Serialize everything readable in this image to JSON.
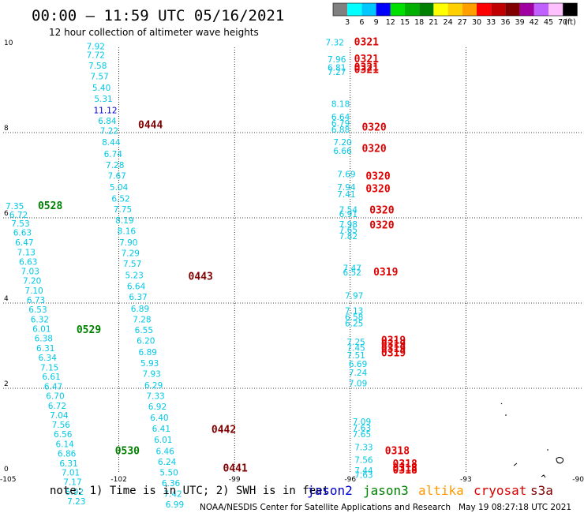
{
  "header": {
    "title": "00:00 – 11:59 UTC 05/16/2021",
    "subtitle": "12 hour collection of altimeter wave heights"
  },
  "colorbar": {
    "labels": [
      "3",
      "6",
      "9",
      "12",
      "15",
      "18",
      "21",
      "24",
      "27",
      "30",
      "33",
      "36",
      "39",
      "42",
      "45",
      "70"
    ],
    "unit": "(ft)",
    "colors": [
      "#808080",
      "#00ffff",
      "#00c8ff",
      "#0000ff",
      "#00e000",
      "#00b000",
      "#008000",
      "#ffff00",
      "#ffd000",
      "#ffa000",
      "#ff0000",
      "#c00000",
      "#800000",
      "#a000a0",
      "#c060ff",
      "#ffc0ff",
      "#000000"
    ]
  },
  "footer": {
    "note": "note: 1) Time is in UTC; 2) SWH is in feet",
    "legend": [
      {
        "name": "jason2",
        "color": "#0000cc"
      },
      {
        "name": "jason3",
        "color": "#008000"
      },
      {
        "name": "altika",
        "color": "#ff9900"
      },
      {
        "name": "cryosat",
        "color": "#dd0000"
      },
      {
        "name": "s3a",
        "color": "#800000"
      }
    ],
    "credit": "NOAA/NESDIS Center for Satellite Applications and Research",
    "timestamp": "May 19 08:27:18 UTC 2021"
  },
  "chart_data": {
    "type": "scatter",
    "title": "12 hour collection of altimeter wave heights",
    "xlabel": "",
    "ylabel": "",
    "xlim": [
      -105,
      -90
    ],
    "ylim": [
      0,
      10
    ],
    "x_ticks": [
      "-105",
      "-102",
      "-99",
      "-96",
      "-93",
      "-90"
    ],
    "y_ticks": [
      "0",
      "2",
      "4",
      "6",
      "8",
      "10"
    ],
    "grid": true,
    "palette": {
      "cyan": "#00c8e6",
      "blue": "#0000cc",
      "green": "#008000",
      "darkred": "#800000",
      "red": "#dd0000"
    },
    "track_labels": [
      {
        "text": "0444",
        "lon": -101.5,
        "lat": 8.1,
        "color": "darkred"
      },
      {
        "text": "0443",
        "lon": -100.2,
        "lat": 4.55,
        "color": "darkred"
      },
      {
        "text": "0442",
        "lon": -99.6,
        "lat": 0.95,
        "color": "darkred"
      },
      {
        "text": "0441",
        "lon": -99.3,
        "lat": 0.05,
        "color": "darkred"
      },
      {
        "text": "0528",
        "lon": -104.1,
        "lat": 6.2,
        "color": "green"
      },
      {
        "text": "0529",
        "lon": -103.1,
        "lat": 3.3,
        "color": "green"
      },
      {
        "text": "0530",
        "lon": -102.1,
        "lat": 0.45,
        "color": "green"
      },
      {
        "text": "0321",
        "lon": -95.9,
        "lat": 10.05,
        "color": "red"
      },
      {
        "text": "0321",
        "lon": -95.9,
        "lat": 9.65,
        "color": "red"
      },
      {
        "text": "0321",
        "lon": -95.9,
        "lat": 9.45,
        "color": "red"
      },
      {
        "text": "0321",
        "lon": -95.9,
        "lat": 9.4,
        "color": "red"
      },
      {
        "text": "0320",
        "lon": -95.7,
        "lat": 8.05,
        "color": "red"
      },
      {
        "text": "0320",
        "lon": -95.7,
        "lat": 7.55,
        "color": "red"
      },
      {
        "text": "0320",
        "lon": -95.6,
        "lat": 6.9,
        "color": "red"
      },
      {
        "text": "0320",
        "lon": -95.6,
        "lat": 6.6,
        "color": "red"
      },
      {
        "text": "0320",
        "lon": -95.5,
        "lat": 6.1,
        "color": "red"
      },
      {
        "text": "0320",
        "lon": -95.5,
        "lat": 5.75,
        "color": "red"
      },
      {
        "text": "0319",
        "lon": -95.4,
        "lat": 4.65,
        "color": "red"
      },
      {
        "text": "0319",
        "lon": -95.2,
        "lat": 3.05,
        "color": "red"
      },
      {
        "text": "0319",
        "lon": -95.2,
        "lat": 2.95,
        "color": "red"
      },
      {
        "text": "0319",
        "lon": -95.2,
        "lat": 2.85,
        "color": "red"
      },
      {
        "text": "0319",
        "lon": -95.2,
        "lat": 2.75,
        "color": "red"
      },
      {
        "text": "0318",
        "lon": -95.1,
        "lat": 0.45,
        "color": "red"
      },
      {
        "text": "0318",
        "lon": -94.9,
        "lat": 0.15,
        "color": "red"
      },
      {
        "text": "0318",
        "lon": -94.9,
        "lat": 0.05,
        "color": "red"
      },
      {
        "text": "0318",
        "lon": -94.9,
        "lat": 0.0,
        "color": "red"
      }
    ],
    "points": [
      {
        "v": "7.92",
        "lon": -102.6,
        "lat": 9.95,
        "color": "cyan"
      },
      {
        "v": "7.72",
        "lon": -102.6,
        "lat": 9.75,
        "color": "cyan"
      },
      {
        "v": "7.58",
        "lon": -102.55,
        "lat": 9.5,
        "color": "cyan"
      },
      {
        "v": "7.57",
        "lon": -102.5,
        "lat": 9.25,
        "color": "cyan"
      },
      {
        "v": "5.40",
        "lon": -102.45,
        "lat": 8.98,
        "color": "cyan"
      },
      {
        "v": "5.31",
        "lon": -102.4,
        "lat": 8.72,
        "color": "cyan"
      },
      {
        "v": "11.12",
        "lon": -102.35,
        "lat": 8.45,
        "color": "blue"
      },
      {
        "v": "6.84",
        "lon": -102.3,
        "lat": 8.2,
        "color": "cyan"
      },
      {
        "v": "7.22",
        "lon": -102.25,
        "lat": 7.97,
        "color": "cyan"
      },
      {
        "v": "8.44",
        "lon": -102.2,
        "lat": 7.7,
        "color": "cyan"
      },
      {
        "v": "6.74",
        "lon": -102.15,
        "lat": 7.43,
        "color": "cyan"
      },
      {
        "v": "7.28",
        "lon": -102.1,
        "lat": 7.17,
        "color": "cyan"
      },
      {
        "v": "7.67",
        "lon": -102.05,
        "lat": 6.92,
        "color": "cyan"
      },
      {
        "v": "5.04",
        "lon": -102.0,
        "lat": 6.65,
        "color": "cyan"
      },
      {
        "v": "6.52",
        "lon": -101.95,
        "lat": 6.38,
        "color": "cyan"
      },
      {
        "v": "7.75",
        "lon": -101.9,
        "lat": 6.13,
        "color": "cyan"
      },
      {
        "v": "8.19",
        "lon": -101.85,
        "lat": 5.87,
        "color": "cyan"
      },
      {
        "v": "8.16",
        "lon": -101.8,
        "lat": 5.62,
        "color": "cyan"
      },
      {
        "v": "7.90",
        "lon": -101.75,
        "lat": 5.35,
        "color": "cyan"
      },
      {
        "v": "7.29",
        "lon": -101.7,
        "lat": 5.1,
        "color": "cyan"
      },
      {
        "v": "7.57",
        "lon": -101.65,
        "lat": 4.85,
        "color": "cyan"
      },
      {
        "v": "5.23",
        "lon": -101.6,
        "lat": 4.58,
        "color": "cyan"
      },
      {
        "v": "6.64",
        "lon": -101.55,
        "lat": 4.32,
        "color": "cyan"
      },
      {
        "v": "6.37",
        "lon": -101.5,
        "lat": 4.07,
        "color": "cyan"
      },
      {
        "v": "6.89",
        "lon": -101.45,
        "lat": 3.8,
        "color": "cyan"
      },
      {
        "v": "7.28",
        "lon": -101.4,
        "lat": 3.55,
        "color": "cyan"
      },
      {
        "v": "6.55",
        "lon": -101.35,
        "lat": 3.3,
        "color": "cyan"
      },
      {
        "v": "6.20",
        "lon": -101.3,
        "lat": 3.05,
        "color": "cyan"
      },
      {
        "v": "6.89",
        "lon": -101.25,
        "lat": 2.78,
        "color": "cyan"
      },
      {
        "v": "5.93",
        "lon": -101.2,
        "lat": 2.52,
        "color": "cyan"
      },
      {
        "v": "7.93",
        "lon": -101.15,
        "lat": 2.27,
        "color": "cyan"
      },
      {
        "v": "6.29",
        "lon": -101.1,
        "lat": 2.0,
        "color": "cyan"
      },
      {
        "v": "7.33",
        "lon": -101.05,
        "lat": 1.75,
        "color": "cyan"
      },
      {
        "v": "6.92",
        "lon": -101.0,
        "lat": 1.5,
        "color": "cyan"
      },
      {
        "v": "6.40",
        "lon": -100.95,
        "lat": 1.24,
        "color": "cyan"
      },
      {
        "v": "6.41",
        "lon": -100.9,
        "lat": 0.98,
        "color": "cyan"
      },
      {
        "v": "6.01",
        "lon": -100.85,
        "lat": 0.72,
        "color": "cyan"
      },
      {
        "v": "6.46",
        "lon": -100.8,
        "lat": 0.45,
        "color": "cyan"
      },
      {
        "v": "6.24",
        "lon": -100.75,
        "lat": 0.2,
        "color": "cyan"
      },
      {
        "v": "5.50",
        "lon": -100.7,
        "lat": -0.05,
        "color": "cyan"
      },
      {
        "v": "6.36",
        "lon": -100.65,
        "lat": -0.3,
        "color": "cyan"
      },
      {
        "v": "7.42",
        "lon": -100.6,
        "lat": -0.55,
        "color": "cyan"
      },
      {
        "v": "6.99",
        "lon": -100.55,
        "lat": -0.8,
        "color": "cyan"
      },
      {
        "v": "7.35",
        "lon": -104.7,
        "lat": 6.2,
        "color": "cyan"
      },
      {
        "v": "6.72",
        "lon": -104.6,
        "lat": 6.0,
        "color": "cyan"
      },
      {
        "v": "7.53",
        "lon": -104.55,
        "lat": 5.8,
        "color": "cyan"
      },
      {
        "v": "6.63",
        "lon": -104.5,
        "lat": 5.58,
        "color": "cyan"
      },
      {
        "v": "6.47",
        "lon": -104.45,
        "lat": 5.35,
        "color": "cyan"
      },
      {
        "v": "7.13",
        "lon": -104.4,
        "lat": 5.12,
        "color": "cyan"
      },
      {
        "v": "6.63",
        "lon": -104.35,
        "lat": 4.9,
        "color": "cyan"
      },
      {
        "v": "7.03",
        "lon": -104.3,
        "lat": 4.68,
        "color": "cyan"
      },
      {
        "v": "7.20",
        "lon": -104.25,
        "lat": 4.45,
        "color": "cyan"
      },
      {
        "v": "7.10",
        "lon": -104.2,
        "lat": 4.22,
        "color": "cyan"
      },
      {
        "v": "6.73",
        "lon": -104.15,
        "lat": 4.0,
        "color": "cyan"
      },
      {
        "v": "6.53",
        "lon": -104.1,
        "lat": 3.78,
        "color": "cyan"
      },
      {
        "v": "6.32",
        "lon": -104.05,
        "lat": 3.55,
        "color": "cyan"
      },
      {
        "v": "6.01",
        "lon": -104.0,
        "lat": 3.32,
        "color": "cyan"
      },
      {
        "v": "6.38",
        "lon": -103.95,
        "lat": 3.1,
        "color": "cyan"
      },
      {
        "v": "6.31",
        "lon": -103.9,
        "lat": 2.87,
        "color": "cyan"
      },
      {
        "v": "6.34",
        "lon": -103.85,
        "lat": 2.65,
        "color": "cyan"
      },
      {
        "v": "7.15",
        "lon": -103.8,
        "lat": 2.42,
        "color": "cyan"
      },
      {
        "v": "6.61",
        "lon": -103.75,
        "lat": 2.2,
        "color": "cyan"
      },
      {
        "v": "6.47",
        "lon": -103.7,
        "lat": 1.97,
        "color": "cyan"
      },
      {
        "v": "6.70",
        "lon": -103.65,
        "lat": 1.75,
        "color": "cyan"
      },
      {
        "v": "6.72",
        "lon": -103.6,
        "lat": 1.52,
        "color": "cyan"
      },
      {
        "v": "7.04",
        "lon": -103.55,
        "lat": 1.3,
        "color": "cyan"
      },
      {
        "v": "7.56",
        "lon": -103.5,
        "lat": 1.07,
        "color": "cyan"
      },
      {
        "v": "6.56",
        "lon": -103.45,
        "lat": 0.85,
        "color": "cyan"
      },
      {
        "v": "6.14",
        "lon": -103.4,
        "lat": 0.62,
        "color": "cyan"
      },
      {
        "v": "6.86",
        "lon": -103.35,
        "lat": 0.4,
        "color": "cyan"
      },
      {
        "v": "6.31",
        "lon": -103.3,
        "lat": 0.17,
        "color": "cyan"
      },
      {
        "v": "7.01",
        "lon": -103.25,
        "lat": -0.05,
        "color": "cyan"
      },
      {
        "v": "7.17",
        "lon": -103.2,
        "lat": -0.27,
        "color": "cyan"
      },
      {
        "v": "6.92",
        "lon": -103.15,
        "lat": -0.5,
        "color": "cyan"
      },
      {
        "v": "7.23",
        "lon": -103.1,
        "lat": -0.72,
        "color": "cyan"
      },
      {
        "v": "7.32",
        "lon": -96.4,
        "lat": 10.05,
        "color": "cyan"
      },
      {
        "v": "7.96",
        "lon": -96.35,
        "lat": 9.65,
        "color": "cyan"
      },
      {
        "v": "6.81",
        "lon": -96.35,
        "lat": 9.45,
        "color": "cyan"
      },
      {
        "v": "7.27",
        "lon": -96.35,
        "lat": 9.35,
        "color": "cyan"
      },
      {
        "v": "8.18",
        "lon": -96.25,
        "lat": 8.6,
        "color": "cyan"
      },
      {
        "v": "6.64",
        "lon": -96.25,
        "lat": 8.3,
        "color": "cyan"
      },
      {
        "v": "6.79",
        "lon": -96.25,
        "lat": 8.15,
        "color": "cyan"
      },
      {
        "v": "6.88",
        "lon": -96.25,
        "lat": 8.0,
        "color": "cyan"
      },
      {
        "v": "7.20",
        "lon": -96.2,
        "lat": 7.7,
        "color": "cyan"
      },
      {
        "v": "6.66",
        "lon": -96.2,
        "lat": 7.5,
        "color": "cyan"
      },
      {
        "v": "7.69",
        "lon": -96.1,
        "lat": 6.95,
        "color": "cyan"
      },
      {
        "v": "7.94",
        "lon": -96.1,
        "lat": 6.65,
        "color": "cyan"
      },
      {
        "v": "7.41",
        "lon": -96.1,
        "lat": 6.48,
        "color": "cyan"
      },
      {
        "v": "7.54",
        "lon": -96.05,
        "lat": 6.12,
        "color": "cyan"
      },
      {
        "v": "6.91",
        "lon": -96.05,
        "lat": 6.02,
        "color": "cyan"
      },
      {
        "v": "7.98",
        "lon": -96.05,
        "lat": 5.78,
        "color": "cyan"
      },
      {
        "v": "7.65",
        "lon": -96.05,
        "lat": 5.65,
        "color": "cyan"
      },
      {
        "v": "7.82",
        "lon": -96.05,
        "lat": 5.5,
        "color": "cyan"
      },
      {
        "v": "7.47",
        "lon": -95.95,
        "lat": 4.75,
        "color": "cyan"
      },
      {
        "v": "6.52",
        "lon": -95.95,
        "lat": 4.65,
        "color": "cyan"
      },
      {
        "v": "7.97",
        "lon": -95.9,
        "lat": 4.1,
        "color": "cyan"
      },
      {
        "v": "7.13",
        "lon": -95.9,
        "lat": 3.75,
        "color": "cyan"
      },
      {
        "v": "6.58",
        "lon": -95.9,
        "lat": 3.6,
        "color": "cyan"
      },
      {
        "v": "6.25",
        "lon": -95.9,
        "lat": 3.45,
        "color": "cyan"
      },
      {
        "v": "7.25",
        "lon": -95.85,
        "lat": 3.02,
        "color": "cyan"
      },
      {
        "v": "7.45",
        "lon": -95.85,
        "lat": 2.88,
        "color": "cyan"
      },
      {
        "v": "7.51",
        "lon": -95.85,
        "lat": 2.7,
        "color": "cyan"
      },
      {
        "v": "6.69",
        "lon": -95.8,
        "lat": 2.5,
        "color": "cyan"
      },
      {
        "v": "7.24",
        "lon": -95.8,
        "lat": 2.3,
        "color": "cyan"
      },
      {
        "v": "7.09",
        "lon": -95.8,
        "lat": 2.05,
        "color": "cyan"
      },
      {
        "v": "7.09",
        "lon": -95.7,
        "lat": 1.15,
        "color": "cyan"
      },
      {
        "v": "7.63",
        "lon": -95.7,
        "lat": 1.0,
        "color": "cyan"
      },
      {
        "v": "7.65",
        "lon": -95.7,
        "lat": 0.85,
        "color": "cyan"
      },
      {
        "v": "7.33",
        "lon": -95.65,
        "lat": 0.55,
        "color": "cyan"
      },
      {
        "v": "7.56",
        "lon": -95.65,
        "lat": 0.25,
        "color": "cyan"
      },
      {
        "v": "7.44",
        "lon": -95.65,
        "lat": 0.0,
        "color": "cyan"
      },
      {
        "v": "7.63",
        "lon": -95.65,
        "lat": -0.1,
        "color": "cyan"
      }
    ]
  }
}
